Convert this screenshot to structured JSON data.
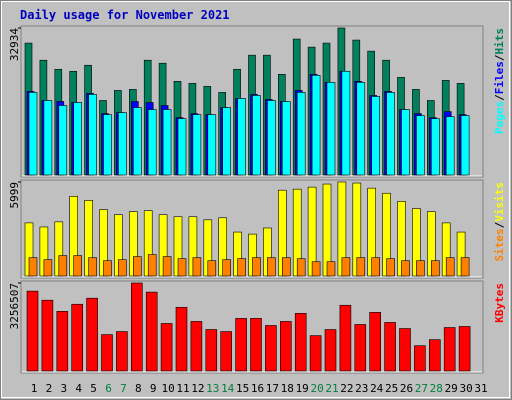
{
  "title": "Daily usage for November 2021",
  "legend_separator": "/",
  "weekend_days": [
    "6",
    "7",
    "13",
    "14",
    "20",
    "21",
    "27",
    "28"
  ],
  "weekend_color": "#008040",
  "chart_data": [
    {
      "type": "bar",
      "ylim": [
        0,
        32934
      ],
      "yticks": [
        32934
      ],
      "series": [
        {
          "name": "Hits",
          "color": "#00805c",
          "values": [
            29554,
            25718,
            23688,
            23237,
            24590,
            16694,
            18950,
            19176,
            25718,
            25042,
            20981,
            20530,
            19853,
            18499,
            23688,
            26846,
            26846,
            22560,
            30456,
            28651,
            29554,
            32934,
            30230,
            27749,
            25718,
            21883,
            19176,
            16694,
            21206,
            20530,
            null
          ]
        },
        {
          "name": "Files",
          "color": "#0000ff",
          "values": [
            18725,
            16694,
            16469,
            16243,
            18274,
            13762,
            13987,
            16469,
            16243,
            15566,
            12859,
            13762,
            13536,
            15115,
            17146,
            18048,
            16920,
            16469,
            18950,
            22560,
            20755,
            23237,
            20981,
            17822,
            18725,
            14664,
            13762,
            12859,
            14213,
            13536,
            null
          ]
        },
        {
          "name": "Pages",
          "color": "#00ffff",
          "values": [
            18499,
            16694,
            15566,
            16243,
            18048,
            13536,
            13987,
            15115,
            14664,
            14664,
            12634,
            13536,
            13536,
            15115,
            17146,
            17822,
            16694,
            16469,
            18499,
            22334,
            20755,
            23237,
            20755,
            17597,
            18499,
            14664,
            13310,
            12634,
            13085,
            13310,
            null
          ]
        }
      ]
    },
    {
      "type": "bar",
      "ylim": [
        0,
        5999
      ],
      "yticks": [
        5999
      ],
      "series": [
        {
          "name": "Visits",
          "color": "#ffff00",
          "values": [
            3390,
            3130,
            3456,
            5086,
            4825,
            4238,
            3912,
            4108,
            4173,
            3912,
            3782,
            3782,
            3586,
            3716,
            2804,
            2673,
            3064,
            5477,
            5542,
            5672,
            5868,
            5999,
            5933,
            5607,
            5281,
            4760,
            4303,
            4108,
            3390,
            2804,
            null
          ]
        },
        {
          "name": "Sites",
          "color": "#ff8000",
          "values": [
            1174,
            1043,
            1304,
            1304,
            1174,
            978,
            1043,
            1239,
            1369,
            1239,
            1108,
            1174,
            978,
            1043,
            1108,
            1174,
            1174,
            1174,
            1108,
            913,
            913,
            1174,
            1174,
            1174,
            1108,
            978,
            978,
            978,
            1174,
            1174,
            null
          ]
        }
      ]
    },
    {
      "type": "bar",
      "ylim": [
        0,
        3256507
      ],
      "yticks": [
        3256507
      ],
      "categories": [
        "1",
        "2",
        "3",
        "4",
        "5",
        "6",
        "7",
        "8",
        "9",
        "10",
        "11",
        "12",
        "13",
        "14",
        "15",
        "16",
        "17",
        "18",
        "19",
        "20",
        "21",
        "22",
        "23",
        "24",
        "25",
        "26",
        "27",
        "28",
        "29",
        "30",
        "31"
      ],
      "series": [
        {
          "name": "KBytes",
          "color": "#ff0000",
          "values": [
            2957049,
            2620170,
            2208429,
            2470446,
            2695032,
            1347516,
            1459809,
            3256507,
            2919618,
            1759257,
            2358153,
            1834119,
            1534671,
            1459809,
            1946412,
            1946412,
            1684395,
            1834119,
            2133567,
            1310085,
            1534671,
            2433015,
            1721826,
            2170998,
            1796688,
            1572102,
            935775,
            1160361,
            1609533,
            1646964,
            null
          ]
        }
      ]
    }
  ]
}
